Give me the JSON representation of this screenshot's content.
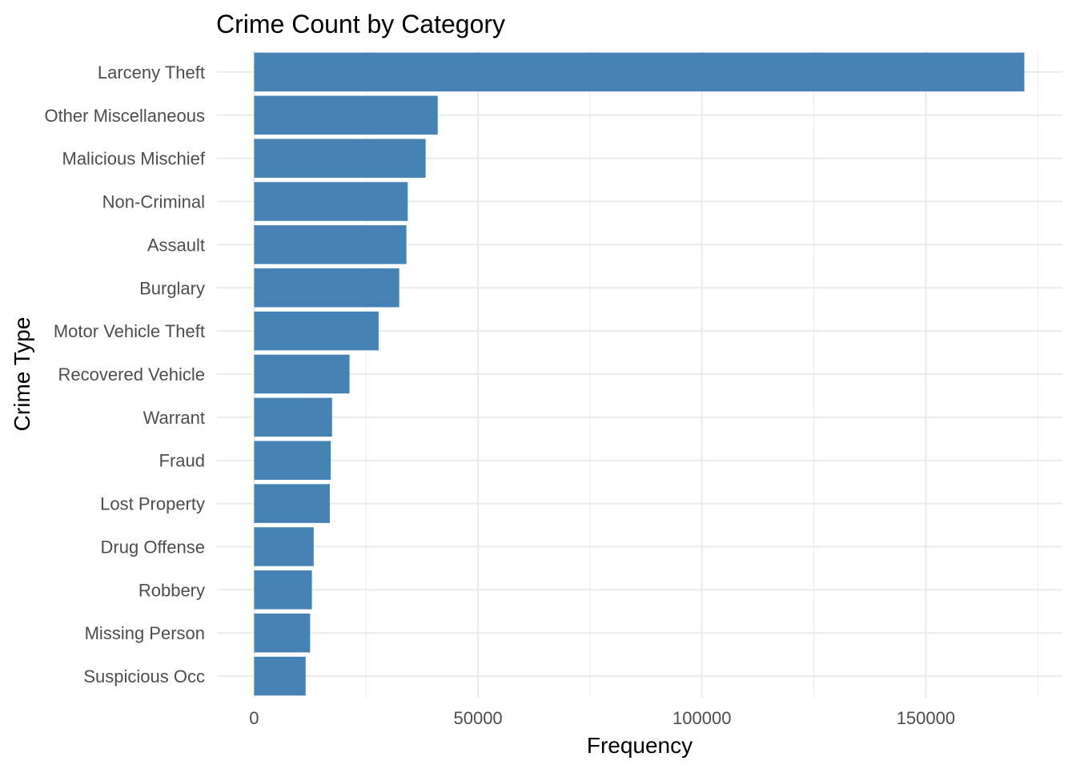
{
  "chart_data": {
    "type": "bar",
    "orientation": "horizontal",
    "title": "Crime Count by Category",
    "xlabel": "Frequency",
    "ylabel": "Crime Type",
    "categories": [
      "Larceny Theft",
      "Other Miscellaneous",
      "Malicious Mischief",
      "Non-Criminal",
      "Assault",
      "Burglary",
      "Motor Vehicle Theft",
      "Recovered Vehicle",
      "Warrant",
      "Fraud",
      "Lost Property",
      "Drug Offense",
      "Robbery",
      "Missing Person",
      "Suspicious Occ"
    ],
    "values": [
      172000,
      41000,
      38300,
      34300,
      34000,
      32400,
      27800,
      21300,
      17400,
      17100,
      16900,
      13300,
      12900,
      12500,
      11500
    ],
    "xlim": [
      -8300,
      180500
    ],
    "x_ticks": [
      0,
      50000,
      100000,
      150000
    ],
    "x_tick_labels": [
      "0",
      "50000",
      "100000",
      "150000"
    ],
    "grid": true,
    "bar_color": "#4682B4",
    "gridline_color": "#EBEBEB"
  }
}
